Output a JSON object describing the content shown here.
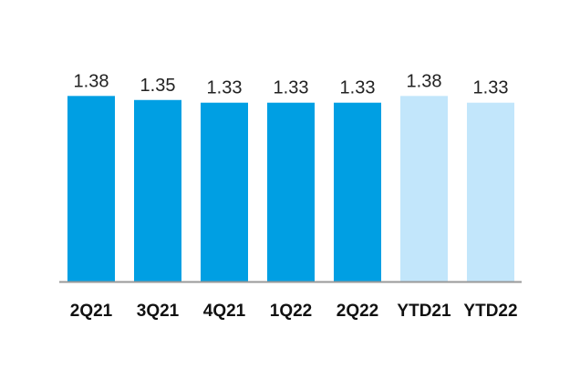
{
  "chart_data": {
    "type": "bar",
    "categories": [
      "2Q21",
      "3Q21",
      "4Q21",
      "1Q22",
      "2Q22",
      "YTD21",
      "YTD22"
    ],
    "values": [
      1.38,
      1.35,
      1.33,
      1.33,
      1.33,
      1.38,
      1.33
    ],
    "value_labels": [
      "1.38",
      "1.35",
      "1.33",
      "1.33",
      "1.33",
      "1.38",
      "1.33"
    ],
    "bar_colors": [
      "#009fe3",
      "#009fe3",
      "#009fe3",
      "#009fe3",
      "#009fe3",
      "#c2e6fb",
      "#c2e6fb"
    ],
    "title": "",
    "xlabel": "",
    "ylabel": "",
    "ylim": [
      0,
      1.45
    ],
    "grid": false,
    "legend": "none",
    "axis_color": "#999999"
  }
}
